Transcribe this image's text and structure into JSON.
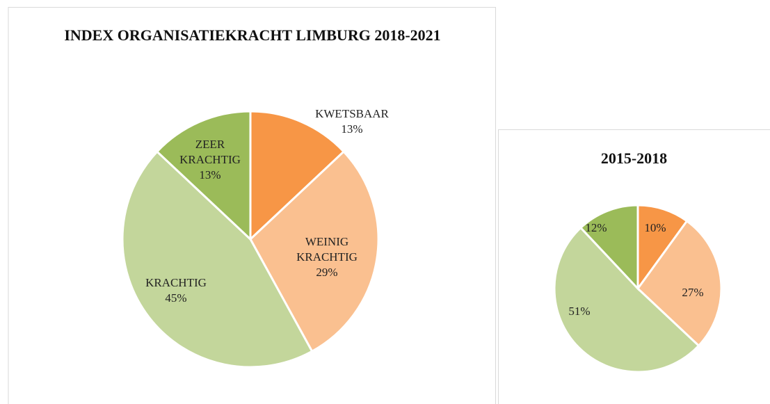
{
  "chart_data": [
    {
      "type": "pie",
      "title": "INDEX ORGANISATIEKRACHT LIMBURG 2018-2021",
      "categories": [
        "KWETSBAAR",
        "WEINIG KRACHTIG",
        "KRACHTIG",
        "ZEER KRACHTIG"
      ],
      "values": [
        13,
        29,
        45,
        13
      ],
      "value_labels": [
        "13%",
        "29%",
        "45%",
        "13%"
      ],
      "colors": [
        "#f79646",
        "#fac090",
        "#c3d69b",
        "#9bbb59"
      ]
    },
    {
      "type": "pie",
      "title": "2015-2018",
      "values": [
        10,
        27,
        51,
        12
      ],
      "value_labels": [
        "10%",
        "27%",
        "51%",
        "12%"
      ],
      "colors": [
        "#f79646",
        "#fac090",
        "#c3d69b",
        "#9bbb59"
      ]
    }
  ]
}
